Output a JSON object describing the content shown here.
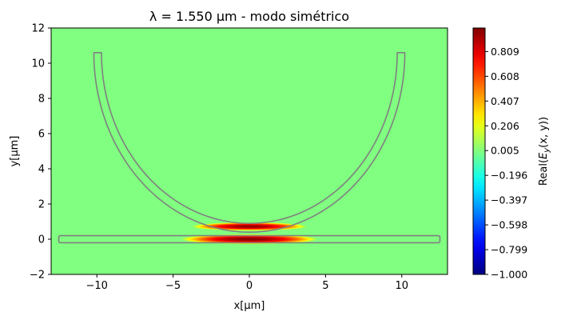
{
  "chart_data": {
    "type": "heatmap",
    "title": "λ = 1.550 μm - modo simétrico",
    "xlabel": "x[μm]",
    "ylabel": "y[μm]",
    "xlim": [
      -13,
      13
    ],
    "ylim": [
      -2,
      12
    ],
    "x_ticks": [
      "−10",
      "−5",
      "0",
      "5",
      "10"
    ],
    "x_tick_values": [
      -10,
      -5,
      0,
      5,
      10
    ],
    "y_ticks": [
      "−2",
      "0",
      "2",
      "4",
      "6",
      "8",
      "10",
      "12"
    ],
    "y_tick_values": [
      -2,
      0,
      2,
      4,
      6,
      8,
      10,
      12
    ],
    "colorbar": {
      "label": "Real(E_y(x, y))",
      "label_parts": {
        "prefix": "Real(",
        "symbol": "E",
        "sub": "y",
        "suffix": "(x, y))"
      },
      "range": [
        -1.0,
        1.0
      ],
      "colormap": "jet",
      "ticks": [
        "0.809",
        "0.608",
        "0.407",
        "0.206",
        "0.005",
        "−0.196",
        "−0.397",
        "−0.598",
        "−0.799",
        "−1.000"
      ],
      "tick_values": [
        0.809,
        0.608,
        0.407,
        0.206,
        0.005,
        -0.196,
        -0.397,
        -0.598,
        -0.799,
        -1.0
      ]
    },
    "background_value": 0.0,
    "field_lobes": [
      {
        "x_center": 0.0,
        "y_center": 0.0,
        "peak": 1.0,
        "x_halfwidth": 4.5,
        "y_halfwidth": 0.25
      },
      {
        "x_center": 0.0,
        "y_center": 0.72,
        "peak": 0.98,
        "x_halfwidth": 3.8,
        "y_halfwidth": 0.2
      }
    ],
    "structures": {
      "outline_color": "#808080",
      "straight_waveguide": {
        "x_min": -12.5,
        "x_max": 12.5,
        "y_min": -0.2,
        "y_max": 0.2
      },
      "ring_waveguide": {
        "center_x": 0.0,
        "center_y": 10.6,
        "inner_radius": 9.7,
        "outer_radius": 10.2,
        "top_y": 10.6,
        "flat_half_width": 3.0
      }
    }
  }
}
